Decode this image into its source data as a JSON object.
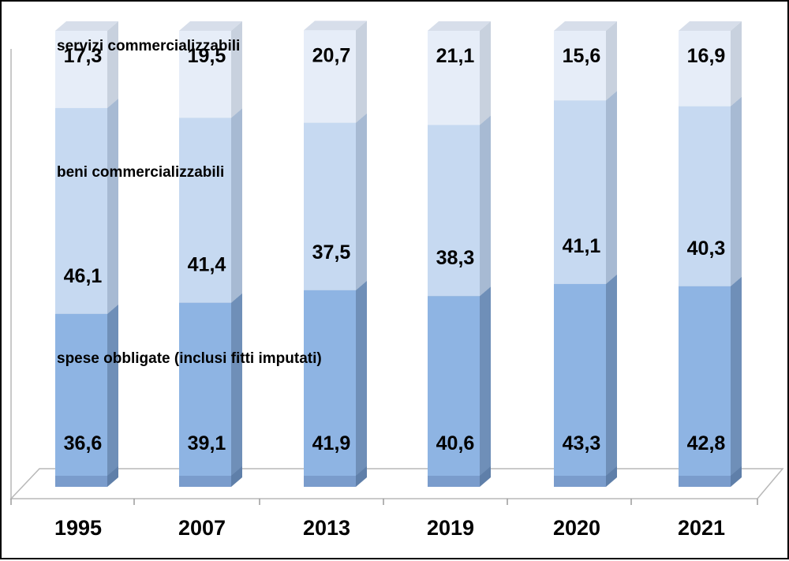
{
  "chart_data": {
    "type": "bar",
    "stacked": true,
    "categories": [
      "1995",
      "2007",
      "2013",
      "2019",
      "2020",
      "2021"
    ],
    "series": [
      {
        "name": "spese obbligate (inclusi fitti imputati)",
        "values": [
          36.6,
          39.1,
          41.9,
          40.6,
          43.3,
          42.8
        ],
        "color": "#8eb4e3"
      },
      {
        "name": "beni commercializzabili",
        "values": [
          46.1,
          41.4,
          37.5,
          38.3,
          41.1,
          40.3
        ],
        "color": "#c6d9f1"
      },
      {
        "name": "servizi commercializzabili",
        "values": [
          17.3,
          19.5,
          20.7,
          21.1,
          15.6,
          16.9
        ],
        "color": "#e6edf8"
      }
    ],
    "value_labels": {
      "spese": [
        "36,6",
        "39,1",
        "41,9",
        "40,6",
        "43,3",
        "42,8"
      ],
      "beni": [
        "46,1",
        "41,4",
        "37,5",
        "38,3",
        "41,1",
        "40,3"
      ],
      "servizi": [
        "17,3",
        "19,5",
        "20,7",
        "21,1",
        "15,6",
        "16,9"
      ]
    },
    "ylim": [
      0,
      100
    ],
    "grid": false,
    "legend": "inline labels on first bar"
  }
}
